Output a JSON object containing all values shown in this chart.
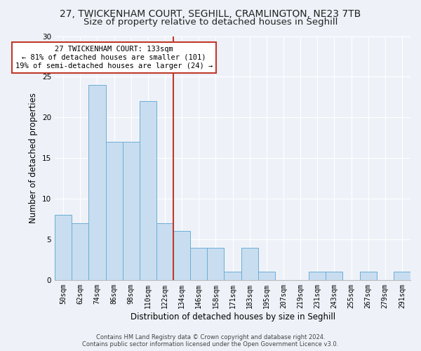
{
  "title_line1": "27, TWICKENHAM COURT, SEGHILL, CRAMLINGTON, NE23 7TB",
  "title_line2": "Size of property relative to detached houses in Seghill",
  "xlabel": "Distribution of detached houses by size in Seghill",
  "ylabel": "Number of detached properties",
  "bar_values": [
    8,
    7,
    24,
    17,
    17,
    22,
    7,
    6,
    4,
    4,
    1,
    4,
    1,
    0,
    0,
    1,
    1,
    0,
    1,
    0,
    1
  ],
  "bar_labels": [
    "50sqm",
    "62sqm",
    "74sqm",
    "86sqm",
    "98sqm",
    "110sqm",
    "122sqm",
    "134sqm",
    "146sqm",
    "158sqm",
    "171sqm",
    "183sqm",
    "195sqm",
    "207sqm",
    "219sqm",
    "231sqm",
    "243sqm",
    "255sqm",
    "267sqm",
    "279sqm",
    "291sqm"
  ],
  "bar_color": "#c9ddf0",
  "bar_edgecolor": "#6aaed6",
  "background_color": "#eef2f8",
  "grid_color": "#ffffff",
  "vline_color": "#c0392b",
  "annotation_text": "27 TWICKENHAM COURT: 133sqm\n← 81% of detached houses are smaller (101)\n19% of semi-detached houses are larger (24) →",
  "annotation_box_color": "#c0392b",
  "annotation_fill": "#ffffff",
  "ylim": [
    0,
    30
  ],
  "yticks": [
    0,
    5,
    10,
    15,
    20,
    25,
    30
  ],
  "footer_text": "Contains HM Land Registry data © Crown copyright and database right 2024.\nContains public sector information licensed under the Open Government Licence v3.0.",
  "title_fontsize": 10,
  "subtitle_fontsize": 9.5,
  "axis_label_fontsize": 8.5,
  "tick_fontsize": 7,
  "annotation_fontsize": 7.5,
  "footer_fontsize": 6
}
